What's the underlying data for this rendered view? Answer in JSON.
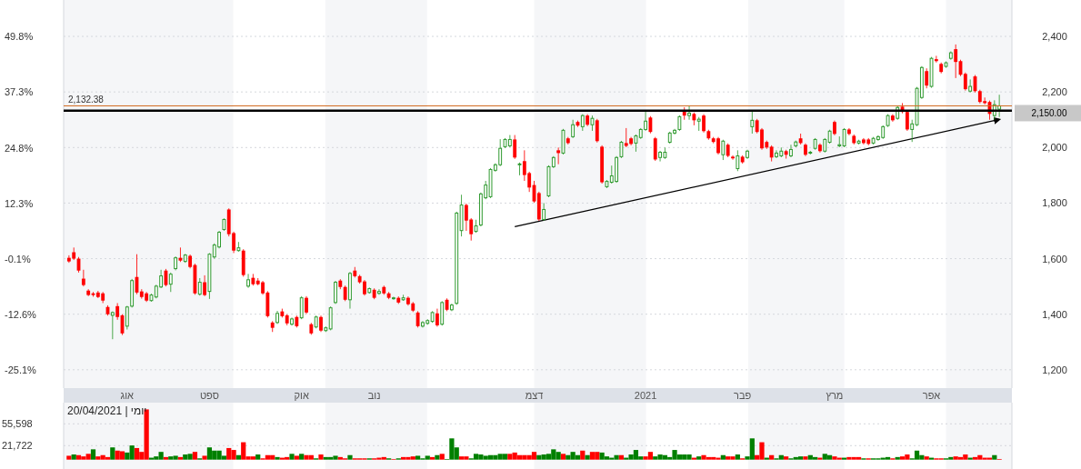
{
  "chart_data": [
    {
      "type": "candlestick",
      "categories": [
        null,
        null,
        null,
        null,
        null,
        null,
        null,
        null,
        null,
        null,
        null,
        null,
        "אוג",
        null,
        null,
        null,
        null,
        null,
        null,
        null,
        null,
        null,
        null,
        null,
        null,
        null,
        null,
        null,
        null,
        "ספט",
        null,
        null,
        null,
        null,
        null,
        null,
        null,
        null,
        null,
        null,
        null,
        null,
        null,
        null,
        null,
        null,
        null,
        null,
        "אוק",
        null,
        null,
        null,
        null,
        null,
        null,
        null,
        null,
        null,
        null,
        null,
        null,
        null,
        null,
        "נוב",
        null,
        null,
        null,
        null,
        null,
        null,
        null,
        null,
        null,
        null,
        null,
        null,
        null,
        null,
        null,
        null,
        null,
        null,
        null,
        null,
        null,
        null,
        null,
        null,
        null,
        null,
        null,
        null,
        null,
        null,
        null,
        null,
        "דצמ",
        null,
        null,
        null,
        null,
        null,
        null,
        null,
        null,
        null,
        null,
        null,
        null,
        null,
        null,
        null,
        null,
        null,
        null,
        null,
        null,
        null,
        null,
        "2021",
        null,
        null,
        null,
        null,
        null,
        null,
        null,
        null,
        null,
        null,
        null,
        null,
        null,
        null,
        null,
        null,
        null,
        null,
        null,
        "פבר",
        null,
        null,
        null,
        null,
        null,
        null,
        null,
        null,
        null,
        null,
        null,
        null,
        null,
        null,
        null,
        null,
        null,
        null,
        "מרץ",
        null,
        null,
        null,
        null,
        null,
        null,
        null,
        null,
        null,
        null,
        null,
        null,
        null,
        null,
        null,
        null,
        null,
        null,
        null,
        "אפר",
        null,
        null,
        null,
        null,
        null,
        null,
        null,
        null,
        null,
        null,
        null,
        null,
        null,
        null
      ],
      "ohlc": [
        [
          1603,
          1612,
          1585,
          1590
        ],
        [
          1623,
          1640,
          1595,
          1600
        ],
        [
          1600,
          1606,
          1550,
          1557
        ],
        [
          1528,
          1560,
          1500,
          1505
        ],
        [
          1485,
          1490,
          1465,
          1469
        ],
        [
          1475,
          1480,
          1463,
          1469
        ],
        [
          1478,
          1484,
          1458,
          1462
        ],
        [
          1475,
          1480,
          1440,
          1449
        ],
        [
          1426,
          1432,
          1395,
          1400
        ],
        [
          1396,
          1410,
          1310,
          1406
        ],
        [
          1429,
          1440,
          1380,
          1390
        ],
        [
          1396,
          1400,
          1325,
          1331
        ],
        [
          1357,
          1430,
          1345,
          1426
        ],
        [
          1429,
          1527,
          1424,
          1521
        ],
        [
          1534,
          1616,
          1472,
          1478
        ],
        [
          1482,
          1490,
          1456,
          1462
        ],
        [
          1475,
          1480,
          1444,
          1449
        ],
        [
          1449,
          1474,
          1445,
          1469
        ],
        [
          1462,
          1506,
          1457,
          1501
        ],
        [
          1498,
          1560,
          1494,
          1538
        ],
        [
          1557,
          1563,
          1500,
          1505
        ],
        [
          1508,
          1550,
          1480,
          1544
        ],
        [
          1564,
          1608,
          1558,
          1603
        ],
        [
          1603,
          1640,
          1588,
          1593
        ],
        [
          1590,
          1617,
          1585,
          1613
        ],
        [
          1610,
          1615,
          1565,
          1570
        ],
        [
          1577,
          1582,
          1470,
          1475
        ],
        [
          1472,
          1530,
          1467,
          1515
        ],
        [
          1515,
          1540,
          1465,
          1469
        ],
        [
          1482,
          1620,
          1455,
          1616
        ],
        [
          1606,
          1655,
          1600,
          1649
        ],
        [
          1642,
          1700,
          1637,
          1695
        ],
        [
          1705,
          1745,
          1700,
          1741
        ],
        [
          1777,
          1781,
          1680,
          1688
        ],
        [
          1692,
          1697,
          1620,
          1629
        ],
        [
          1629,
          1660,
          1625,
          1639
        ],
        [
          1629,
          1634,
          1535,
          1541
        ],
        [
          1501,
          1545,
          1495,
          1524
        ],
        [
          1531,
          1545,
          1503,
          1508
        ],
        [
          1521,
          1530,
          1504,
          1508
        ],
        [
          1515,
          1520,
          1470,
          1475
        ],
        [
          1478,
          1483,
          1388,
          1393
        ],
        [
          1370,
          1375,
          1336,
          1351
        ],
        [
          1370,
          1412,
          1365,
          1403
        ],
        [
          1410,
          1420,
          1388,
          1393
        ],
        [
          1396,
          1400,
          1360,
          1367
        ],
        [
          1364,
          1388,
          1359,
          1383
        ],
        [
          1390,
          1395,
          1352,
          1357
        ],
        [
          1387,
          1465,
          1382,
          1459
        ],
        [
          1459,
          1465,
          1401,
          1406
        ],
        [
          1364,
          1369,
          1326,
          1331
        ],
        [
          1354,
          1395,
          1349,
          1390
        ],
        [
          1390,
          1395,
          1336,
          1341
        ],
        [
          1341,
          1356,
          1336,
          1351
        ],
        [
          1347,
          1428,
          1342,
          1423
        ],
        [
          1442,
          1520,
          1437,
          1515
        ],
        [
          1521,
          1526,
          1490,
          1498
        ],
        [
          1498,
          1503,
          1447,
          1452
        ],
        [
          1452,
          1552,
          1420,
          1547
        ],
        [
          1557,
          1570,
          1532,
          1537
        ],
        [
          1537,
          1542,
          1510,
          1515
        ],
        [
          1518,
          1523,
          1467,
          1472
        ],
        [
          1478,
          1496,
          1474,
          1492
        ],
        [
          1488,
          1493,
          1454,
          1459
        ],
        [
          1475,
          1490,
          1470,
          1482
        ],
        [
          1498,
          1503,
          1470,
          1475
        ],
        [
          1475,
          1480,
          1454,
          1459
        ],
        [
          1456,
          1463,
          1452,
          1459
        ],
        [
          1459,
          1464,
          1437,
          1442
        ],
        [
          1452,
          1470,
          1448,
          1459
        ],
        [
          1459,
          1464,
          1431,
          1436
        ],
        [
          1439,
          1444,
          1408,
          1413
        ],
        [
          1406,
          1411,
          1352,
          1357
        ],
        [
          1357,
          1375,
          1352,
          1370
        ],
        [
          1367,
          1382,
          1362,
          1377
        ],
        [
          1374,
          1411,
          1369,
          1406
        ],
        [
          1403,
          1420,
          1355,
          1360
        ],
        [
          1364,
          1447,
          1359,
          1442
        ],
        [
          1452,
          1457,
          1411,
          1416
        ],
        [
          1416,
          1438,
          1411,
          1433
        ],
        [
          1439,
          1769,
          1434,
          1764
        ],
        [
          1701,
          1830,
          1680,
          1793
        ],
        [
          1793,
          1798,
          1700,
          1737
        ],
        [
          1741,
          1746,
          1665,
          1688
        ],
        [
          1698,
          1740,
          1693,
          1718
        ],
        [
          1721,
          1838,
          1716,
          1833
        ],
        [
          1819,
          1880,
          1814,
          1865
        ],
        [
          1823,
          1926,
          1818,
          1921
        ],
        [
          1918,
          1943,
          1913,
          1938
        ],
        [
          1938,
          2030,
          1933,
          1997
        ],
        [
          2003,
          2034,
          1998,
          2029
        ],
        [
          2006,
          2045,
          2001,
          2029
        ],
        [
          2029,
          2045,
          1959,
          1964
        ],
        [
          1938,
          1946,
          1900,
          1941
        ],
        [
          1951,
          1990,
          1880,
          1901
        ],
        [
          1908,
          1913,
          1840,
          1856
        ],
        [
          1865,
          1880,
          1801,
          1806
        ],
        [
          1836,
          1841,
          1736,
          1741
        ],
        [
          1741,
          1800,
          1736,
          1777
        ],
        [
          1826,
          1936,
          1821,
          1931
        ],
        [
          1931,
          1969,
          1926,
          1964
        ],
        [
          1990,
          2000,
          1940,
          1980
        ],
        [
          1980,
          2067,
          1975,
          2062
        ],
        [
          2033,
          2038,
          2011,
          2016
        ],
        [
          2039,
          2100,
          2034,
          2082
        ],
        [
          2092,
          2097,
          2074,
          2079
        ],
        [
          2075,
          2120,
          2060,
          2115
        ],
        [
          2115,
          2120,
          2077,
          2082
        ],
        [
          2082,
          2115,
          2060,
          2105
        ],
        [
          2098,
          2103,
          2018,
          2023
        ],
        [
          2003,
          2008,
          1870,
          1875
        ],
        [
          1859,
          1883,
          1854,
          1878
        ],
        [
          1875,
          1935,
          1870,
          1898
        ],
        [
          1878,
          1969,
          1873,
          1964
        ],
        [
          1967,
          2024,
          1962,
          2019
        ],
        [
          2016,
          2070,
          2001,
          2006
        ],
        [
          2033,
          2038,
          2008,
          2013
        ],
        [
          2016,
          2047,
          1985,
          2042
        ],
        [
          2036,
          2070,
          2031,
          2065
        ],
        [
          2065,
          2133,
          2060,
          2095
        ],
        [
          2108,
          2113,
          2051,
          2056
        ],
        [
          2033,
          2038,
          1952,
          1957
        ],
        [
          1964,
          1988,
          1950,
          1983
        ],
        [
          1964,
          2000,
          1959,
          1983
        ],
        [
          2019,
          2057,
          2014,
          2052
        ],
        [
          2052,
          2067,
          2047,
          2062
        ],
        [
          2065,
          2116,
          2060,
          2111
        ],
        [
          2131,
          2145,
          2100,
          2115
        ],
        [
          2115,
          2150,
          2100,
          2124
        ],
        [
          2121,
          2126,
          2080,
          2098
        ],
        [
          2095,
          2110,
          2060,
          2102
        ],
        [
          2115,
          2120,
          2054,
          2059
        ],
        [
          2059,
          2064,
          2028,
          2033
        ],
        [
          2033,
          2038,
          2015,
          2020
        ],
        [
          2033,
          2038,
          1975,
          1980
        ],
        [
          1974,
          2028,
          1955,
          2023
        ],
        [
          2010,
          2015,
          1965,
          1970
        ],
        [
          1967,
          1972,
          1956,
          1961
        ],
        [
          1924,
          1990,
          1915,
          1970
        ],
        [
          1967,
          1972,
          1942,
          1947
        ],
        [
          1964,
          1992,
          1959,
          1987
        ],
        [
          2075,
          2133,
          2050,
          2098
        ],
        [
          2098,
          2103,
          2051,
          2056
        ],
        [
          2065,
          2070,
          1992,
          1997
        ],
        [
          2020,
          2025,
          1995,
          2000
        ],
        [
          2003,
          2008,
          1950,
          1964
        ],
        [
          1967,
          1990,
          1962,
          1980
        ],
        [
          1970,
          2000,
          1965,
          1987
        ],
        [
          1987,
          1992,
          1960,
          1974
        ],
        [
          1970,
          2010,
          1965,
          1993
        ],
        [
          2006,
          2025,
          2001,
          2020
        ],
        [
          2033,
          2050,
          2011,
          2016
        ],
        [
          2010,
          2015,
          1969,
          1974
        ],
        [
          1980,
          1988,
          1975,
          1983
        ],
        [
          1997,
          2034,
          1992,
          2029
        ],
        [
          2010,
          2015,
          1982,
          1987
        ],
        [
          1987,
          2034,
          1982,
          2029
        ],
        [
          2019,
          2064,
          2014,
          2059
        ],
        [
          2092,
          2097,
          2044,
          2049
        ],
        [
          2006,
          2040,
          2001,
          2010
        ],
        [
          2006,
          2070,
          2001,
          2065
        ],
        [
          2065,
          2070,
          2044,
          2049
        ],
        [
          2042,
          2047,
          2011,
          2016
        ],
        [
          2016,
          2028,
          2011,
          2023
        ],
        [
          2029,
          2034,
          2011,
          2016
        ],
        [
          2029,
          2034,
          2008,
          2013
        ],
        [
          2016,
          2038,
          2011,
          2033
        ],
        [
          2029,
          2044,
          2024,
          2039
        ],
        [
          2036,
          2080,
          2031,
          2075
        ],
        [
          2079,
          2120,
          2074,
          2115
        ],
        [
          2115,
          2120,
          2093,
          2098
        ],
        [
          2105,
          2149,
          2100,
          2144
        ],
        [
          2147,
          2160,
          2123,
          2128
        ],
        [
          2128,
          2133,
          2060,
          2065
        ],
        [
          2065,
          2100,
          2020,
          2085
        ],
        [
          2082,
          2218,
          2077,
          2213
        ],
        [
          2180,
          2293,
          2175,
          2288
        ],
        [
          2275,
          2285,
          2213,
          2223
        ],
        [
          2220,
          2326,
          2215,
          2321
        ],
        [
          2318,
          2330,
          2306,
          2311
        ],
        [
          2301,
          2306,
          2267,
          2272
        ],
        [
          2292,
          2310,
          2287,
          2305
        ],
        [
          2321,
          2346,
          2316,
          2341
        ],
        [
          2354,
          2371,
          2250,
          2308
        ],
        [
          2311,
          2316,
          2257,
          2262
        ],
        [
          2265,
          2270,
          2205,
          2210
        ],
        [
          2203,
          2245,
          2198,
          2220
        ],
        [
          2256,
          2261,
          2198,
          2203
        ],
        [
          2203,
          2208,
          2159,
          2164
        ],
        [
          2167,
          2180,
          2155,
          2160
        ],
        [
          2164,
          2169,
          2100,
          2121
        ],
        [
          2115,
          2170,
          2100,
          2154
        ],
        [
          2138,
          2190,
          2110,
          2150
        ]
      ],
      "colors": [
        "#ff0000",
        "#ff0000",
        "#ff0000",
        "#ff0000",
        "#ff0000",
        "#ff0000",
        "#ff0000",
        "#ff0000",
        "#ff0000",
        "#2f9a2f",
        "#ff0000",
        "#ff0000",
        "#2f9a2f",
        "#2f9a2f",
        "#ff0000",
        "#ff0000",
        "#ff0000",
        "#2f9a2f",
        "#2f9a2f",
        "#2f9a2f",
        "#ff0000",
        "#2f9a2f",
        "#2f9a2f",
        "#ff0000",
        "#2f9a2f",
        "#ff0000",
        "#ff0000",
        "#2f9a2f",
        "#ff0000",
        "#2f9a2f",
        "#2f9a2f",
        "#2f9a2f",
        "#2f9a2f",
        "#ff0000",
        "#ff0000",
        "#2f9a2f",
        "#ff0000",
        "#2f9a2f",
        "#ff0000",
        "#ff0000",
        "#ff0000",
        "#ff0000",
        "#ff0000",
        "#2f9a2f",
        "#ff0000",
        "#ff0000",
        "#2f9a2f",
        "#ff0000",
        "#2f9a2f",
        "#ff0000",
        "#ff0000",
        "#2f9a2f",
        "#ff0000",
        "#2f9a2f",
        "#2f9a2f",
        "#2f9a2f",
        "#ff0000",
        "#ff0000",
        "#2f9a2f",
        "#ff0000",
        "#ff0000",
        "#ff0000",
        "#2f9a2f",
        "#ff0000",
        "#2f9a2f",
        "#ff0000",
        "#ff0000",
        "#2f9a2f",
        "#ff0000",
        "#2f9a2f",
        "#ff0000",
        "#ff0000",
        "#ff0000",
        "#2f9a2f",
        "#2f9a2f",
        "#2f9a2f",
        "#ff0000",
        "#2f9a2f",
        "#ff0000",
        "#2f9a2f",
        "#2f9a2f",
        "#2f9a2f",
        "#ff0000",
        "#ff0000",
        "#2f9a2f",
        "#2f9a2f",
        "#2f9a2f",
        "#2f9a2f",
        "#2f9a2f",
        "#2f9a2f",
        "#2f9a2f",
        "#2f9a2f",
        "#ff0000",
        "#2f9a2f",
        "#ff0000",
        "#ff0000",
        "#ff0000",
        "#ff0000",
        "#2f9a2f",
        "#2f9a2f",
        "#2f9a2f",
        "#ff0000",
        "#2f9a2f",
        "#ff0000",
        "#2f9a2f",
        "#ff0000",
        "#2f9a2f",
        "#ff0000",
        "#2f9a2f",
        "#ff0000",
        "#ff0000",
        "#2f9a2f",
        "#2f9a2f",
        "#2f9a2f",
        "#2f9a2f",
        "#ff0000",
        "#ff0000",
        "#2f9a2f",
        "#2f9a2f",
        "#2f9a2f",
        "#ff0000",
        "#ff0000",
        "#2f9a2f",
        "#2f9a2f",
        "#2f9a2f",
        "#2f9a2f",
        "#2f9a2f",
        "#ff0000",
        "#2f9a2f",
        "#ff0000",
        "#2f9a2f",
        "#ff0000",
        "#ff0000",
        "#ff0000",
        "#ff0000",
        "#2f9a2f",
        "#ff0000",
        "#ff0000",
        "#2f9a2f",
        "#ff0000",
        "#2f9a2f",
        "#2f9a2f",
        "#ff0000",
        "#ff0000",
        "#ff0000",
        "#ff0000",
        "#2f9a2f",
        "#2f9a2f",
        "#ff0000",
        "#2f9a2f",
        "#2f9a2f",
        "#ff0000",
        "#ff0000",
        "#2f9a2f",
        "#2f9a2f",
        "#ff0000",
        "#2f9a2f",
        "#2f9a2f",
        "#ff0000",
        "#2f9a2f",
        "#2f9a2f",
        "#ff0000",
        "#ff0000",
        "#2f9a2f",
        "#ff0000",
        "#ff0000",
        "#2f9a2f",
        "#2f9a2f",
        "#2f9a2f",
        "#2f9a2f",
        "#ff0000",
        "#2f9a2f",
        "#ff0000",
        "#ff0000",
        "#2f9a2f",
        "#2f9a2f",
        "#2f9a2f",
        "#ff0000",
        "#2f9a2f",
        "#ff0000",
        "#ff0000",
        "#2f9a2f",
        "#2f9a2f",
        "#ff0000",
        "#ff0000",
        "#ff0000",
        "#2f9a2f",
        "#ff0000",
        "#ff0000",
        "#ff0000",
        "#ff0000",
        "#2f9a2f",
        "#2f9a2f"
      ],
      "series": [
        {
          "type": "line",
          "color": "#000000",
          "values": [
            null,
            null,
            null,
            null,
            null,
            null,
            null,
            null,
            null,
            null,
            null,
            null,
            null,
            null,
            null,
            null,
            null,
            null,
            null,
            null,
            null,
            null,
            null,
            null,
            null,
            null,
            null,
            null,
            null,
            null,
            null,
            null,
            null,
            null,
            null,
            null,
            null,
            null,
            null,
            null,
            null,
            null,
            null,
            null,
            null,
            null,
            null,
            null,
            null,
            null,
            null,
            null,
            null,
            null,
            null,
            null,
            null,
            null,
            null,
            null,
            null,
            null,
            null,
            null,
            null,
            null,
            null,
            null,
            null,
            null,
            null,
            null,
            null,
            null,
            null,
            null,
            null,
            null,
            null,
            null,
            null,
            null,
            null,
            null,
            null,
            null,
            null,
            null,
            null,
            null,
            null,
            null,
            1715,
            null,
            null,
            null,
            null,
            null,
            null,
            null,
            null,
            null,
            null,
            null,
            null,
            null,
            null,
            null,
            null,
            null,
            null,
            null,
            null,
            null,
            null,
            null,
            null,
            null,
            null,
            null,
            null,
            null,
            null,
            null,
            null,
            null,
            null,
            null,
            null,
            null,
            null,
            null,
            null,
            null,
            null,
            null,
            null,
            null,
            null,
            null,
            null,
            null,
            null,
            null,
            null,
            null,
            null,
            null,
            null,
            null,
            null,
            null,
            null,
            null,
            null,
            null,
            null,
            null,
            null,
            null,
            null,
            null,
            null,
            null,
            null,
            null,
            null,
            null,
            null,
            null,
            null,
            null,
            null,
            null,
            null,
            null,
            null,
            null,
            null,
            null,
            null,
            null,
            null,
            null,
            null,
            null,
            null,
            null,
            null,
            null,
            null,
            null,
            2101
          ]
        }
      ],
      "ylim": [
        1134,
        2531
      ],
      "yticks": [
        {
          "value": 1200,
          "label": "1,200"
        },
        {
          "value": 1400,
          "label": "1,400"
        },
        {
          "value": 1600,
          "label": "1,600"
        },
        {
          "value": 1800,
          "label": "1,800"
        },
        {
          "value": 2000,
          "label": "2,000"
        },
        {
          "value": 2200,
          "label": "2,200"
        },
        {
          "value": 2400,
          "label": "2,400"
        }
      ],
      "y2lim": [
        -29.2,
        58.0
      ],
      "y2ticks": [
        {
          "value": -25.1,
          "label": "-25.1%"
        },
        {
          "value": -12.6,
          "label": "-12.6%"
        },
        {
          "value": -0.1,
          "label": "-0.1%"
        },
        {
          "value": 12.3,
          "label": "12.3%"
        },
        {
          "value": 24.8,
          "label": "24.8%"
        },
        {
          "value": 37.3,
          "label": "37.3%"
        },
        {
          "value": 49.8,
          "label": "49.8%"
        }
      ],
      "grid": "y",
      "ref_lines": [
        {
          "axis": "y",
          "value": 2132.38,
          "label": "2,132.38",
          "color": "#000000"
        },
        {
          "axis": "y",
          "value": 2150,
          "label": "2,150.00",
          "color": "#d2691e"
        }
      ]
    },
    {
      "type": "bar",
      "categories": [
        null,
        null,
        null,
        null,
        null,
        null,
        null,
        null,
        null,
        null,
        null,
        null,
        null,
        null,
        null,
        null,
        null,
        null,
        null,
        null,
        null,
        null,
        null,
        null,
        null,
        null,
        null,
        null,
        null,
        null,
        null,
        null,
        null,
        null,
        null,
        null,
        null,
        null,
        null,
        null,
        null,
        null,
        null,
        null,
        null,
        null,
        null,
        null,
        null,
        null,
        null,
        null,
        null,
        null,
        null,
        null,
        null,
        null,
        null,
        null,
        null,
        null,
        null,
        null,
        null,
        null,
        null,
        null,
        null,
        null,
        null,
        null,
        null,
        null,
        null,
        null,
        null,
        null,
        null,
        null,
        null,
        null,
        null,
        null,
        null,
        null,
        null,
        null,
        null,
        null,
        null,
        null,
        null,
        null,
        null,
        null,
        null,
        null,
        null,
        null,
        null,
        null,
        null,
        null,
        null,
        null,
        null,
        null,
        null,
        null,
        null,
        null,
        null,
        null,
        null,
        null,
        null,
        null,
        null,
        null,
        null,
        null,
        null,
        null,
        null,
        null,
        null,
        null,
        null,
        null,
        null,
        null,
        null,
        null,
        null,
        null,
        null,
        null,
        null,
        null,
        null,
        null,
        null,
        null,
        null,
        null,
        null,
        null,
        null,
        null,
        null,
        null,
        null,
        null,
        null,
        null,
        null,
        null,
        null,
        null,
        null,
        null,
        null,
        null,
        null,
        null,
        null,
        null,
        null,
        null,
        null,
        null,
        null,
        null,
        null,
        null,
        null,
        null,
        null,
        null,
        null,
        null,
        null,
        null,
        null,
        null,
        null,
        null,
        null,
        null,
        null,
        null,
        null
      ],
      "values": [
        6000,
        8000,
        7000,
        5000,
        9000,
        16000,
        5000,
        7000,
        4000,
        19000,
        14000,
        13000,
        11000,
        22000,
        18000,
        12000,
        78000,
        3000,
        5000,
        12000,
        4000,
        5000,
        6000,
        4000,
        8000,
        9000,
        12000,
        2000,
        6000,
        19000,
        14000,
        14000,
        6000,
        18000,
        15000,
        7000,
        27000,
        5000,
        5000,
        8000,
        2000,
        7000,
        7000,
        4000,
        3000,
        4000,
        9000,
        6000,
        9000,
        7000,
        7000,
        2000,
        8000,
        4000,
        4000,
        6000,
        4000,
        2000,
        7000,
        2000,
        2000,
        2000,
        2000,
        2000,
        3000,
        4000,
        2000,
        1000,
        2000,
        4000,
        4000,
        5000,
        6000,
        2000,
        6000,
        4000,
        7000,
        9000,
        1000,
        33000,
        19000,
        5000,
        5000,
        2000,
        9000,
        8000,
        6000,
        7000,
        7000,
        9000,
        9000,
        9000,
        11000,
        7000,
        7000,
        7000,
        12000,
        7000,
        8000,
        9000,
        16000,
        12000,
        9000,
        7000,
        12000,
        7000,
        14000,
        7000,
        12000,
        12000,
        11000,
        5000,
        3000,
        7000,
        7000,
        3000,
        8000,
        15000,
        5000,
        5000,
        12000,
        5000,
        8000,
        7000,
        4000,
        15000,
        8000,
        8000,
        8000,
        3000,
        5000,
        7000,
        4000,
        4000,
        3000,
        7000,
        5000,
        5000,
        8000,
        2000,
        5000,
        33000,
        7000,
        27000,
        3000,
        7000,
        2000,
        7000,
        5000,
        2000,
        4000,
        5000,
        5000,
        7000,
        4000,
        3000,
        9000,
        7000,
        5000,
        3000,
        3000,
        4000,
        4000,
        4000,
        2000,
        2000,
        2000,
        2000,
        3000,
        4000,
        2000,
        4000,
        5000,
        8000,
        2000,
        14000,
        7000,
        5000,
        3000,
        2000,
        2000,
        2000,
        4000,
        5000,
        4000,
        8000,
        3000,
        4000,
        7000,
        3000,
        3000,
        7000,
        1000
      ],
      "colors": [
        "#ff0000",
        "#008000",
        "#ff0000",
        "#ff0000",
        "#ff0000",
        "#008000",
        "#ff0000",
        "#ff0000",
        "#ff0000",
        "#008000",
        "#ff0000",
        "#ff0000",
        "#008000",
        "#008000",
        "#ff0000",
        "#ff0000",
        "#ff0000",
        "#008000",
        "#008000",
        "#008000",
        "#ff0000",
        "#008000",
        "#008000",
        "#ff0000",
        "#008000",
        "#008000",
        "#ff0000",
        "#008000",
        "#ff0000",
        "#008000",
        "#008000",
        "#008000",
        "#008000",
        "#ff0000",
        "#ff0000",
        "#008000",
        "#ff0000",
        "#ff0000",
        "#ff0000",
        "#008000",
        "#ff0000",
        "#ff0000",
        "#ff0000",
        "#008000",
        "#ff0000",
        "#ff0000",
        "#008000",
        "#ff0000",
        "#008000",
        "#ff0000",
        "#ff0000",
        "#008000",
        "#ff0000",
        "#008000",
        "#008000",
        "#008000",
        "#ff0000",
        "#ff0000",
        "#008000",
        "#ff0000",
        "#ff0000",
        "#ff0000",
        "#008000",
        "#ff0000",
        "#ff0000",
        "#ff0000",
        "#008000",
        "#ff0000",
        "#008000",
        "#ff0000",
        "#ff0000",
        "#ff0000",
        "#008000",
        "#008000",
        "#008000",
        "#ff0000",
        "#008000",
        "#ff0000",
        "#008000",
        "#008000",
        "#008000",
        "#ff0000",
        "#ff0000",
        "#008000",
        "#008000",
        "#008000",
        "#008000",
        "#008000",
        "#008000",
        "#008000",
        "#008000",
        "#ff0000",
        "#ff0000",
        "#ff0000",
        "#ff0000",
        "#ff0000",
        "#ff0000",
        "#008000",
        "#008000",
        "#008000",
        "#008000",
        "#008000",
        "#ff0000",
        "#008000",
        "#008000",
        "#008000",
        "#ff0000",
        "#008000",
        "#ff0000",
        "#ff0000",
        "#008000",
        "#008000",
        "#008000",
        "#008000",
        "#ff0000",
        "#008000",
        "#008000",
        "#008000",
        "#008000",
        "#ff0000",
        "#ff0000",
        "#008000",
        "#008000",
        "#008000",
        "#008000",
        "#008000",
        "#008000",
        "#008000",
        "#008000",
        "#ff0000",
        "#008000",
        "#ff0000",
        "#ff0000",
        "#ff0000",
        "#ff0000",
        "#008000",
        "#ff0000",
        "#ff0000",
        "#008000",
        "#ff0000",
        "#008000",
        "#008000",
        "#ff0000",
        "#ff0000",
        "#008000",
        "#ff0000",
        "#008000",
        "#008000",
        "#ff0000",
        "#008000",
        "#008000",
        "#008000",
        "#ff0000",
        "#008000",
        "#008000",
        "#ff0000",
        "#008000",
        "#008000",
        "#ff0000",
        "#ff0000",
        "#008000",
        "#ff0000",
        "#ff0000",
        "#ff0000",
        "#008000",
        "#ff0000",
        "#008000",
        "#008000",
        "#008000",
        "#008000",
        "#ff0000",
        "#008000",
        "#ff0000",
        "#ff0000",
        "#008000",
        "#008000",
        "#008000",
        "#ff0000",
        "#008000",
        "#ff0000",
        "#ff0000",
        "#008000",
        "#008000",
        "#ff0000",
        "#ff0000",
        "#ff0000",
        "#008000",
        "#ff0000",
        "#ff0000",
        "#ff0000",
        "#ff0000",
        "#008000",
        "#ff0000"
      ],
      "ylim": [
        -14550,
        88490
      ],
      "yticks": [
        {
          "value": 21722,
          "label": "21,722"
        },
        {
          "value": 55598,
          "label": "55,598"
        }
      ],
      "tick_labels": "y",
      "grid": "y",
      "annotations": [
        "יומי | 20/04/2021"
      ]
    }
  ]
}
